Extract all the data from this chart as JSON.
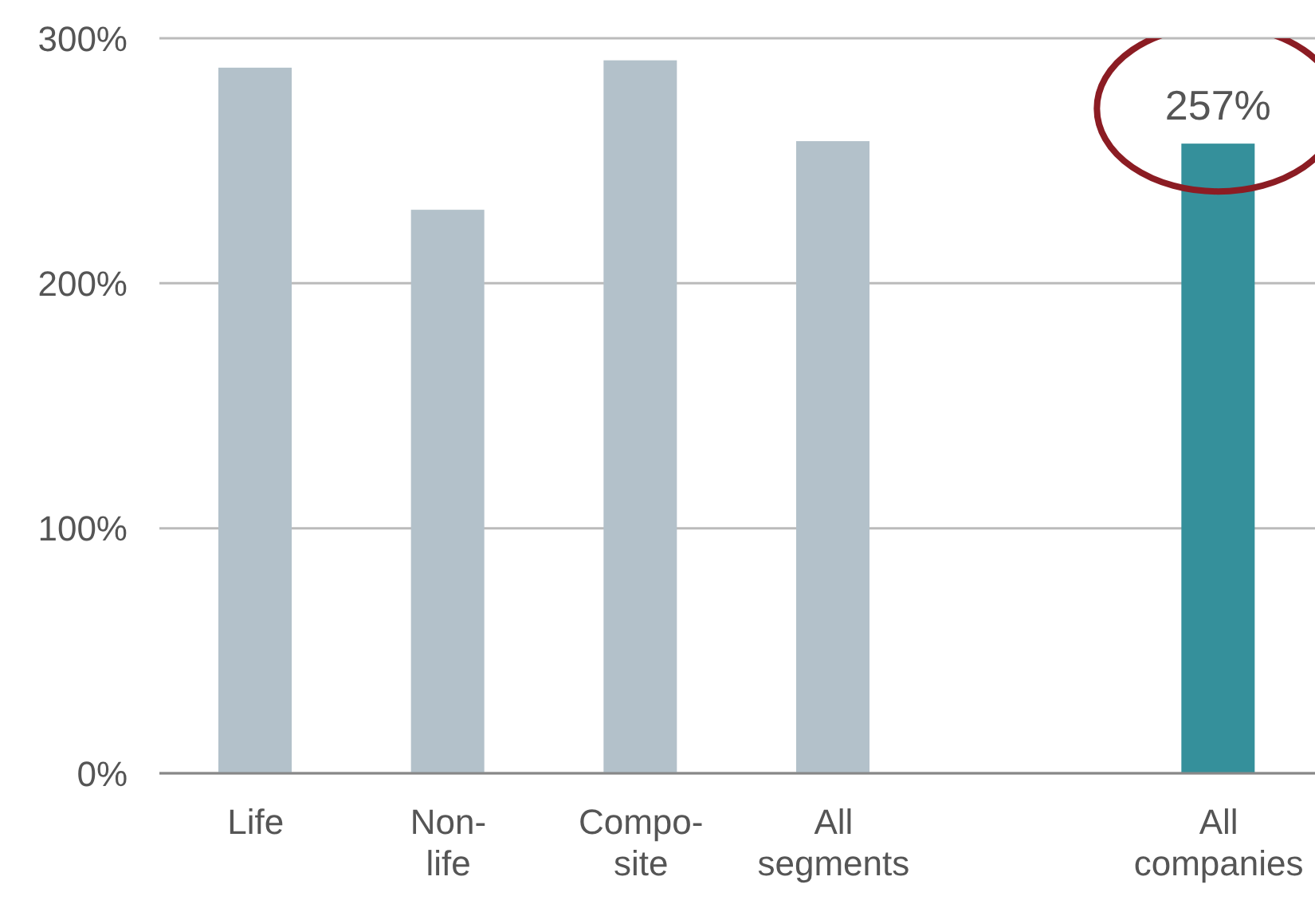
{
  "chart_data": {
    "type": "bar",
    "categories": [
      "Life",
      "Non-\nlife",
      "Compo-\nsite",
      "All\nsegments",
      null,
      "All\ncompanies"
    ],
    "values": [
      288,
      230,
      291,
      258,
      null,
      257
    ],
    "colors": [
      "#b3c1ca",
      "#b3c1ca",
      "#b3c1ca",
      "#b3c1ca",
      "#b3c1ca",
      "#35909b"
    ],
    "value_labels": [
      null,
      null,
      null,
      null,
      null,
      "257%"
    ],
    "ylim": [
      0,
      300
    ],
    "yticks": [
      {
        "value": 0,
        "label": "0%"
      },
      {
        "value": 100,
        "label": "100%"
      },
      {
        "value": 200,
        "label": "200%"
      },
      {
        "value": 300,
        "label": "300%"
      }
    ],
    "grid": "y"
  }
}
